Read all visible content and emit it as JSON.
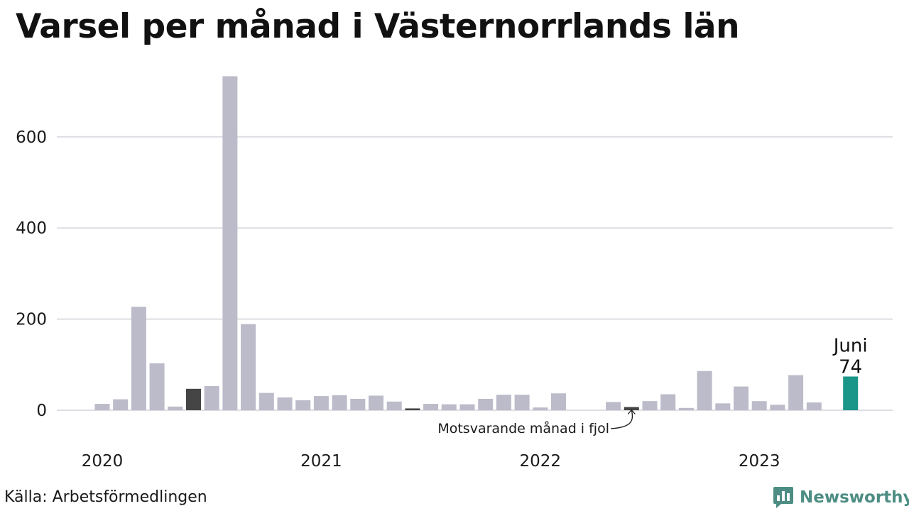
{
  "title": "Varsel per månad i Västernorrlands län",
  "source": "Källa: Arbetsförmedlingen",
  "brand": {
    "name": "Newsworthy",
    "icon": "newsworthy-logo-icon",
    "color": "#4d8d83"
  },
  "chart_data": {
    "type": "bar",
    "title": "Varsel per månad i Västernorrlands län",
    "xlabel": "",
    "ylabel": "",
    "ylim": [
      0,
      760
    ],
    "grid": true,
    "y_ticks": [
      0,
      200,
      400,
      600
    ],
    "x_tick_labels": [
      "2020",
      "2021",
      "2022",
      "2023"
    ],
    "categories": [
      "2020-01",
      "2020-02",
      "2020-03",
      "2020-04",
      "2020-05",
      "2020-06",
      "2020-07",
      "2020-08",
      "2020-09",
      "2020-10",
      "2020-11",
      "2020-12",
      "2021-01",
      "2021-02",
      "2021-03",
      "2021-04",
      "2021-05",
      "2021-06",
      "2021-07",
      "2021-08",
      "2021-09",
      "2021-10",
      "2021-11",
      "2021-12",
      "2022-01",
      "2022-02",
      "2022-03",
      "2022-04",
      "2022-05",
      "2022-06",
      "2022-07",
      "2022-08",
      "2022-09",
      "2022-10",
      "2022-11",
      "2022-12",
      "2023-01",
      "2023-02",
      "2023-03",
      "2023-04",
      "2023-05",
      "2023-06"
    ],
    "values": [
      14,
      24,
      227,
      103,
      8,
      47,
      53,
      733,
      189,
      38,
      28,
      22,
      31,
      33,
      25,
      32,
      19,
      4,
      14,
      13,
      13,
      25,
      34,
      34,
      6,
      37,
      0,
      0,
      18,
      7,
      20,
      35,
      5,
      86,
      15,
      52,
      20,
      12,
      77,
      17,
      0,
      74
    ],
    "colors": {
      "default": "#bcbbc9",
      "same_month": "#454545",
      "current": "#1a9688",
      "grid": "#dddde3"
    },
    "same_month_indices": [
      5,
      17,
      29
    ],
    "current_index": 41,
    "highlight_label": {
      "month": "Juni",
      "value": "74"
    },
    "annotation": "Motsvarande månad i fjol"
  }
}
